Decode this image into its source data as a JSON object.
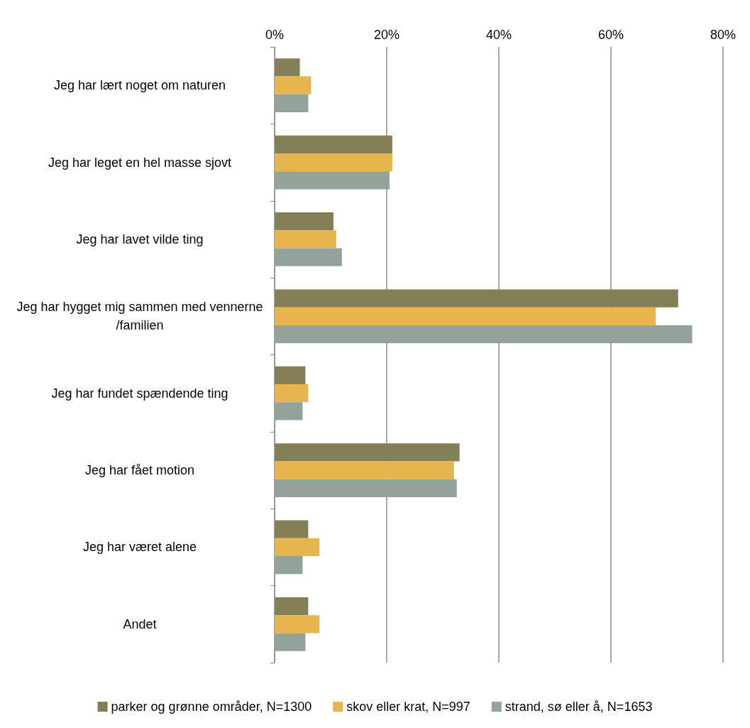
{
  "chart_data": {
    "type": "bar",
    "orientation": "horizontal",
    "categories": [
      "Jeg har lært noget om naturen",
      "Jeg har leget en hel masse sjovt",
      "Jeg har lavet vilde ting",
      "Jeg har hygget mig sammen med vennerne/familien",
      "Jeg har fundet spændende ting",
      "Jeg har fået motion",
      "Jeg har været alene",
      "Andet"
    ],
    "series": [
      {
        "name": "parker og grønne områder, N=1300",
        "color": "#857f57",
        "values": [
          4.5,
          21,
          10.5,
          72,
          5.5,
          33,
          6,
          6
        ]
      },
      {
        "name": "skov eller krat, N=997",
        "color": "#e8b44c",
        "values": [
          6.5,
          21,
          11,
          68,
          6,
          32,
          8,
          8
        ]
      },
      {
        "name": "strand, sø eller å, N=1653",
        "color": "#93a39a",
        "values": [
          6,
          20.5,
          12,
          74.5,
          5,
          32.5,
          5,
          5.5
        ]
      }
    ],
    "xlim": [
      0,
      80
    ],
    "xticks": [
      {
        "value": 0,
        "label": "0%"
      },
      {
        "value": 20,
        "label": "20%"
      },
      {
        "value": 40,
        "label": "40%"
      },
      {
        "value": 60,
        "label": "60%"
      },
      {
        "value": 80,
        "label": "80%"
      }
    ],
    "grid": "x",
    "legend": "bottom"
  }
}
